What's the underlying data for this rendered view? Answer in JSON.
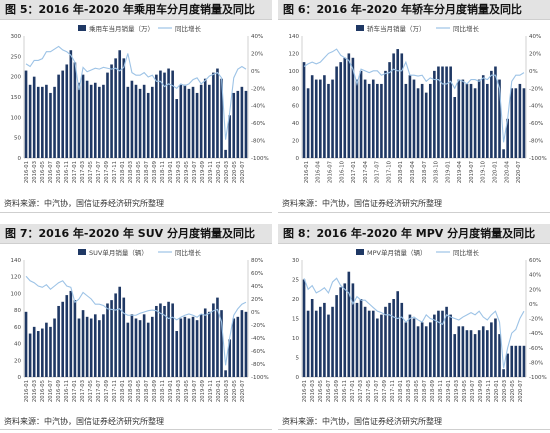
{
  "colors": {
    "bar": "#1f3864",
    "line": "#9dc3e6",
    "axis": "#bfbfbf",
    "text": "#444444",
    "title_bg": "#e3e3e3"
  },
  "panels": [
    {
      "title": "图 5：2016 年-2020 年乘用车分月度销量及同比",
      "source": "资料来源：中汽协，国信证券经济研究所整理"
    },
    {
      "title": "图 6：2016 年-2020 年轿车分月度销量及同比",
      "source": "资料来源：中汽协，国信证券经济研究所整理"
    },
    {
      "title": "图 7：2016 年-2020 年 SUV 分月度销量及同比",
      "source": "资料来源：中汽协，国信证券经济研究所整理"
    },
    {
      "title": "图 8：2016 年-2020 年 MPV 分月度销量及同比",
      "source": "资料来源：中汽协，国信证券经济研究所整理"
    }
  ],
  "chart_data": [
    {
      "type": "bar",
      "title": "",
      "series": [
        {
          "name": "乘用车当月销量（万）",
          "kind": "bar",
          "axis": "left",
          "values": [
            215,
            180,
            200,
            175,
            175,
            180,
            160,
            175,
            205,
            215,
            230,
            265,
            235,
            185,
            205,
            190,
            180,
            185,
            175,
            180,
            210,
            230,
            245,
            265,
            245,
            175,
            190,
            180,
            170,
            180,
            160,
            175,
            205,
            215,
            210,
            220,
            215,
            145,
            180,
            180,
            170,
            175,
            160,
            180,
            195,
            180,
            210,
            220,
            195,
            20,
            105,
            160,
            165,
            175,
            165
          ]
        },
        {
          "name": "同比增长",
          "kind": "line",
          "axis": "right",
          "values": [
            8,
            5,
            12,
            12,
            14,
            22,
            22,
            25,
            28,
            24,
            22,
            18,
            10,
            -22,
            4,
            -1,
            1,
            3,
            2,
            4,
            3,
            2,
            3,
            0,
            4,
            20,
            -2,
            -5,
            -5,
            -2,
            -7,
            -5,
            -12,
            -12,
            -18,
            -15,
            -17,
            -20,
            -15,
            -17,
            -15,
            -10,
            -8,
            -15,
            -11,
            -6,
            -4,
            -2,
            -8,
            -79,
            -48,
            -8,
            2,
            5,
            2
          ]
        }
      ],
      "ylim": [
        0,
        300
      ],
      "ylim_right": [
        -100,
        40
      ],
      "y_ticks": [
        0,
        50,
        100,
        150,
        200,
        250,
        300
      ],
      "y2_ticks": [
        "40%",
        "20%",
        "0%",
        "-20%",
        "-40%",
        "-60%",
        "-80%",
        "-100%"
      ],
      "x_tick_labels": [
        "2016-01",
        "2016-03",
        "2016-05",
        "2016-07",
        "2016-09",
        "2016-11",
        "2017-01",
        "2017-03",
        "2017-05",
        "2017-07",
        "2017-09",
        "2017-11",
        "2018-01",
        "2018-03",
        "2018-05",
        "2018-07",
        "2018-09",
        "2018-11",
        "2019-01",
        "2019-03",
        "2019-05",
        "2019-07",
        "2019-09",
        "2019-11",
        "2020-01",
        "2020-03",
        "2020-05",
        "2020-07"
      ]
    },
    {
      "type": "bar",
      "title": "",
      "series": [
        {
          "name": "轿车当月销量（万）",
          "kind": "bar",
          "axis": "left",
          "values": [
            110,
            80,
            95,
            90,
            90,
            95,
            85,
            90,
            105,
            110,
            115,
            120,
            115,
            90,
            100,
            90,
            85,
            90,
            85,
            85,
            100,
            110,
            120,
            125,
            120,
            85,
            95,
            90,
            80,
            85,
            75,
            85,
            100,
            105,
            105,
            105,
            105,
            70,
            90,
            90,
            85,
            85,
            80,
            90,
            95,
            85,
            100,
            105,
            90,
            10,
            45,
            80,
            80,
            85,
            80
          ]
        },
        {
          "name": "同比增长",
          "kind": "line",
          "axis": "right",
          "values": [
            5,
            8,
            10,
            8,
            10,
            15,
            20,
            22,
            25,
            18,
            15,
            12,
            2,
            -15,
            2,
            0,
            -2,
            0,
            0,
            -5,
            -3,
            -2,
            2,
            0,
            0,
            10,
            -5,
            -5,
            -6,
            -5,
            -12,
            -8,
            -10,
            -10,
            -15,
            -15,
            -12,
            -20,
            -10,
            -12,
            -15,
            -10,
            -10,
            -12,
            -8,
            -10,
            -5,
            -5,
            -20,
            -82,
            -55,
            -12,
            -5,
            -5,
            -2
          ]
        }
      ],
      "ylim": [
        0,
        140
      ],
      "ylim_right": [
        -100,
        40
      ],
      "y_ticks": [
        0,
        20,
        40,
        60,
        80,
        100,
        120,
        140
      ],
      "y2_ticks": [
        "40%",
        "20%",
        "0%",
        "-20%",
        "-40%",
        "-60%",
        "-80%",
        "-100%"
      ],
      "x_tick_labels": [
        "2016-01",
        "2016-04",
        "2016-07",
        "2016-10",
        "2017-01",
        "2017-04",
        "2017-07",
        "2017-10",
        "2018-01",
        "2018-04",
        "2018-07",
        "2018-10",
        "2019-01",
        "2019-04",
        "2019-07",
        "2019-10",
        "2020-01",
        "2020-04",
        "2020-07"
      ]
    },
    {
      "type": "bar",
      "title": "",
      "series": [
        {
          "name": "SUV单月销量（辆）",
          "kind": "bar",
          "axis": "left",
          "values": [
            78,
            52,
            60,
            55,
            58,
            65,
            60,
            70,
            85,
            90,
            98,
            103,
            92,
            70,
            80,
            72,
            70,
            75,
            68,
            75,
            88,
            92,
            100,
            108,
            95,
            65,
            75,
            70,
            68,
            75,
            65,
            72,
            85,
            88,
            85,
            90,
            88,
            55,
            70,
            72,
            70,
            72,
            68,
            75,
            82,
            78,
            88,
            95,
            80,
            8,
            45,
            70,
            72,
            80,
            78
          ]
        },
        {
          "name": "同比增长",
          "kind": "line",
          "axis": "right",
          "values": [
            55,
            48,
            45,
            40,
            38,
            42,
            35,
            40,
            45,
            48,
            40,
            38,
            15,
            20,
            30,
            25,
            20,
            12,
            12,
            10,
            5,
            4,
            3,
            5,
            -2,
            -5,
            -5,
            -5,
            -2,
            0,
            2,
            3,
            2,
            -2,
            -5,
            -10,
            -8,
            -12,
            -8,
            -5,
            -3,
            -5,
            -8,
            -3,
            -5,
            -2,
            2,
            4,
            -15,
            -82,
            -40,
            -5,
            5,
            12,
            15
          ]
        }
      ],
      "ylim": [
        0,
        140
      ],
      "ylim_right": [
        -100,
        80
      ],
      "y_ticks": [
        0,
        20,
        40,
        60,
        80,
        100,
        120,
        140
      ],
      "y2_ticks": [
        "80%",
        "60%",
        "40%",
        "20%",
        "0%",
        "-20%",
        "-40%",
        "-60%",
        "-80%",
        "-100%"
      ],
      "x_tick_labels": [
        "2016-01",
        "2016-03",
        "2016-05",
        "2016-07",
        "2016-09",
        "2016-11",
        "2017-01",
        "2017-03",
        "2017-05",
        "2017-07",
        "2017-09",
        "2017-11",
        "2018-01",
        "2018-03",
        "2018-05",
        "2018-07",
        "2018-09",
        "2018-11",
        "2019-01",
        "2019-03",
        "2019-05",
        "2019-07",
        "2019-09",
        "2019-11",
        "2020-01",
        "2020-03",
        "2020-05",
        "2020-07"
      ]
    },
    {
      "type": "bar",
      "title": "",
      "series": [
        {
          "name": "MPV单月销量（辆）",
          "kind": "bar",
          "axis": "left",
          "values": [
            25,
            17,
            20,
            17,
            18,
            19,
            16,
            18,
            21,
            23,
            24,
            27,
            24,
            19,
            20,
            18,
            17,
            17,
            15,
            16,
            18,
            19,
            20,
            22,
            19,
            14,
            16,
            15,
            13,
            14,
            13,
            14,
            16,
            17,
            17,
            18,
            16,
            11,
            13,
            13,
            12,
            12,
            11,
            12,
            13,
            12,
            14,
            15,
            11,
            2,
            6,
            8,
            8,
            8,
            8
          ]
        },
        {
          "name": "同比增长",
          "kind": "line",
          "axis": "right",
          "values": [
            35,
            20,
            25,
            15,
            18,
            22,
            15,
            30,
            35,
            25,
            20,
            15,
            0,
            10,
            5,
            5,
            0,
            -5,
            -10,
            -12,
            -15,
            -15,
            -18,
            -20,
            -18,
            -25,
            -20,
            -18,
            -22,
            -25,
            -15,
            -20,
            -22,
            -25,
            -28,
            -15,
            -18,
            -20,
            -22,
            -18,
            -15,
            -12,
            -15,
            -10,
            -18,
            -22,
            -15,
            -10,
            -25,
            -88,
            -60,
            -40,
            -35,
            -20,
            -10
          ]
        }
      ],
      "ylim": [
        0,
        30
      ],
      "ylim_right": [
        -100,
        60
      ],
      "y_ticks": [
        0,
        5,
        10,
        15,
        20,
        25,
        30
      ],
      "y2_ticks": [
        "60%",
        "40%",
        "20%",
        "0%",
        "-20%",
        "-40%",
        "-60%",
        "-80%",
        "-100%"
      ],
      "x_tick_labels": [
        "2016-01",
        "2016-03",
        "2016-05",
        "2016-07",
        "2016-09",
        "2016-11",
        "2017-01",
        "2017-03",
        "2017-05",
        "2017-07",
        "2017-09",
        "2017-11",
        "2018-01",
        "2018-03",
        "2018-05",
        "2018-07",
        "2018-09",
        "2018-11",
        "2019-01",
        "2019-03",
        "2019-05",
        "2019-07",
        "2019-09",
        "2019-11",
        "2020-01",
        "2020-03",
        "2020-05",
        "2020-07"
      ]
    }
  ]
}
